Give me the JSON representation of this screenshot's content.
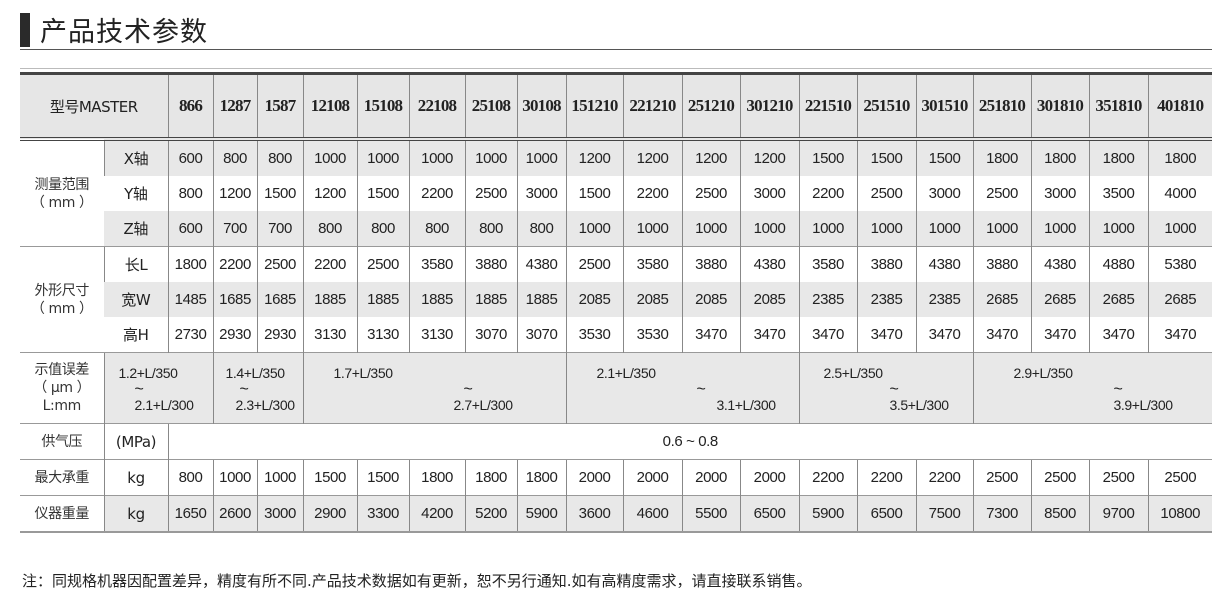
{
  "title": "产品技术参数",
  "header": {
    "model_label": "型号MASTER",
    "models": [
      "866",
      "1287",
      "1587",
      "12108",
      "15108",
      "22108",
      "25108",
      "30108",
      "151210",
      "221210",
      "251210",
      "301210",
      "221510",
      "251510",
      "301510",
      "251810",
      "301810",
      "351810",
      "401810"
    ]
  },
  "measuring_range": {
    "label": "测量范围",
    "unit": "（ mm ）",
    "rows": [
      {
        "axis": "X轴",
        "values": [
          "600",
          "800",
          "800",
          "1000",
          "1000",
          "1000",
          "1000",
          "1000",
          "1200",
          "1200",
          "1200",
          "1200",
          "1500",
          "1500",
          "1500",
          "1800",
          "1800",
          "1800",
          "1800"
        ]
      },
      {
        "axis": "Y轴",
        "values": [
          "800",
          "1200",
          "1500",
          "1200",
          "1500",
          "2200",
          "2500",
          "3000",
          "1500",
          "2200",
          "2500",
          "3000",
          "2200",
          "2500",
          "3000",
          "2500",
          "3000",
          "3500",
          "4000"
        ]
      },
      {
        "axis": "Z轴",
        "values": [
          "600",
          "700",
          "700",
          "800",
          "800",
          "800",
          "800",
          "800",
          "1000",
          "1000",
          "1000",
          "1000",
          "1000",
          "1000",
          "1000",
          "1000",
          "1000",
          "1000",
          "1000"
        ]
      }
    ]
  },
  "dimensions": {
    "label": "外形尺寸",
    "unit": "（ mm ）",
    "rows": [
      {
        "axis": "长L",
        "values": [
          "1800",
          "2200",
          "2500",
          "2200",
          "2500",
          "3580",
          "3880",
          "4380",
          "2500",
          "3580",
          "3880",
          "4380",
          "3580",
          "3880",
          "4380",
          "3880",
          "4380",
          "4880",
          "5380"
        ]
      },
      {
        "axis": "宽W",
        "values": [
          "1485",
          "1685",
          "1685",
          "1885",
          "1885",
          "1885",
          "1885",
          "1885",
          "2085",
          "2085",
          "2085",
          "2085",
          "2385",
          "2385",
          "2385",
          "2685",
          "2685",
          "2685",
          "2685"
        ]
      },
      {
        "axis": "高H",
        "values": [
          "2730",
          "2930",
          "2930",
          "3130",
          "3130",
          "3130",
          "3070",
          "3070",
          "3530",
          "3530",
          "3470",
          "3470",
          "3470",
          "3470",
          "3470",
          "3470",
          "3470",
          "3470",
          "3470"
        ]
      }
    ]
  },
  "accuracy": {
    "label": "示值误差",
    "unit": "（ μm ）",
    "sub": "L:mm",
    "tilde": "~",
    "groups": [
      {
        "top": "1.2+L/350",
        "bottom": "2.1+L/300",
        "span": 1
      },
      {
        "top": "1.4+L/350",
        "bottom": "2.3+L/300",
        "span": 2
      },
      {
        "top": "1.7+L/350",
        "bottom": "2.7+L/300",
        "span": 5
      },
      {
        "top": "2.1+L/350",
        "bottom": "3.1+L/300",
        "span": 4
      },
      {
        "top": "2.5+L/350",
        "bottom": "3.5+L/300",
        "span": 3
      },
      {
        "top": "2.9+L/350",
        "bottom": "3.9+L/300",
        "span": 4
      }
    ]
  },
  "air_pressure": {
    "label": "供气压",
    "unit": "(MPa)",
    "value": "0.6 ~ 0.8"
  },
  "max_load": {
    "label": "最大承重",
    "unit": "kg",
    "values": [
      "800",
      "1000",
      "1000",
      "1500",
      "1500",
      "1800",
      "1800",
      "1800",
      "2000",
      "2000",
      "2000",
      "2000",
      "2200",
      "2200",
      "2200",
      "2500",
      "2500",
      "2500",
      "2500"
    ]
  },
  "weight": {
    "label": "仪器重量",
    "unit": "kg",
    "values": [
      "1650",
      "2600",
      "3000",
      "2900",
      "3300",
      "4200",
      "5200",
      "5900",
      "3600",
      "4600",
      "5500",
      "6500",
      "5900",
      "6500",
      "7500",
      "7300",
      "8500",
      "9700",
      "10800"
    ]
  },
  "note": "注：同规格机器因配置差异，精度有所不同.产品技术数据如有更新，恕不另行通知.如有高精度需求，请直接联系销售。"
}
